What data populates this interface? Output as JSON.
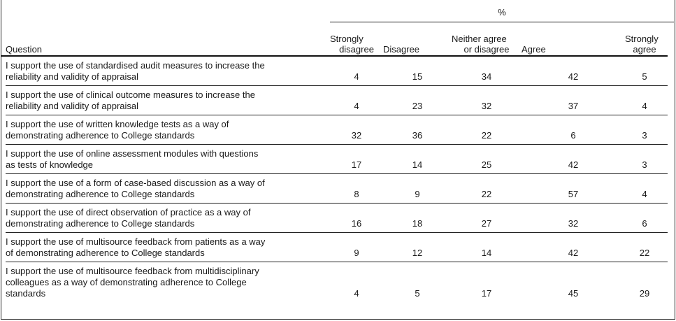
{
  "table": {
    "spanner": "%",
    "headers": [
      "Question",
      "Strongly disagree",
      "Disagree",
      "Neither agree or disagree",
      "Agree",
      "Strongly agree"
    ],
    "header_lines": [
      [
        "Question"
      ],
      [
        "Strongly",
        "disagree"
      ],
      [
        "Disagree"
      ],
      [
        "Neither agree",
        "or disagree"
      ],
      [
        "Agree"
      ],
      [
        "Strongly",
        "agree"
      ]
    ],
    "rows": [
      {
        "question_lines": [
          "I support the use of standardised audit measures to increase the",
          "reliability and validity of appraisal"
        ],
        "values": [
          "4",
          "15",
          "34",
          "42",
          "5"
        ]
      },
      {
        "question_lines": [
          "I support the use of clinical outcome measures to increase the",
          "reliability and validity of appraisal"
        ],
        "values": [
          "4",
          "23",
          "32",
          "37",
          "4"
        ]
      },
      {
        "question_lines": [
          "I support the use of written knowledge tests as a way of",
          "demonstrating adherence to College standards"
        ],
        "values": [
          "32",
          "36",
          "22",
          "6",
          "3"
        ]
      },
      {
        "question_lines": [
          "I support the use of online assessment modules with questions",
          "as tests of knowledge"
        ],
        "values": [
          "17",
          "14",
          "25",
          "42",
          "3"
        ]
      },
      {
        "question_lines": [
          "I support the use of a form of case-based discussion as a way of",
          "demonstrating adherence to College standards"
        ],
        "values": [
          "8",
          "9",
          "22",
          "57",
          "4"
        ]
      },
      {
        "question_lines": [
          "I support the use of direct observation of practice as a way of",
          "demonstrating adherence to College standards"
        ],
        "values": [
          "16",
          "18",
          "27",
          "32",
          "6"
        ]
      },
      {
        "question_lines": [
          "I support the use of multisource feedback from patients as a way",
          "of demonstrating adherence to College standards"
        ],
        "values": [
          "9",
          "12",
          "14",
          "42",
          "22"
        ]
      },
      {
        "question_lines": [
          "I support the use of multisource feedback from multidisciplinary",
          "colleagues as a way of demonstrating adherence to College",
          "standards"
        ],
        "values": [
          "4",
          "5",
          "17",
          "45",
          "29"
        ]
      }
    ]
  }
}
